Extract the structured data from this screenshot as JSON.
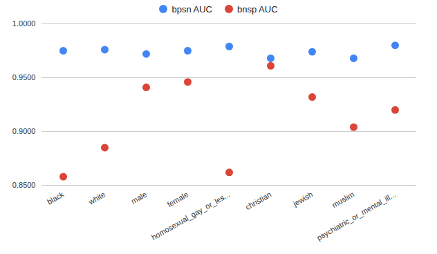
{
  "chart_data": {
    "type": "scatter",
    "categories": [
      "black",
      "white",
      "male",
      "female",
      "homosexual_gay_or_les...",
      "christian",
      "jewish",
      "muslim",
      "psychiatric_or_mental_ill..."
    ],
    "series": [
      {
        "name": "bpsn AUC",
        "color": "#4285f4",
        "values": [
          0.975,
          0.976,
          0.972,
          0.975,
          0.979,
          0.968,
          0.974,
          0.968,
          0.98
        ]
      },
      {
        "name": "bnsp AUC",
        "color": "#db4437",
        "values": [
          0.858,
          0.885,
          0.941,
          0.946,
          0.862,
          0.961,
          0.932,
          0.904,
          0.92
        ]
      }
    ],
    "ylim": [
      0.85,
      1.0
    ],
    "yticks": [
      {
        "value": 0.85,
        "label": "0.8500"
      },
      {
        "value": 0.9,
        "label": "0.9000"
      },
      {
        "value": 0.95,
        "label": "0.9500"
      },
      {
        "value": 1.0,
        "label": "1.0000"
      }
    ],
    "grid": true,
    "legend": "top",
    "marker": "circle"
  }
}
